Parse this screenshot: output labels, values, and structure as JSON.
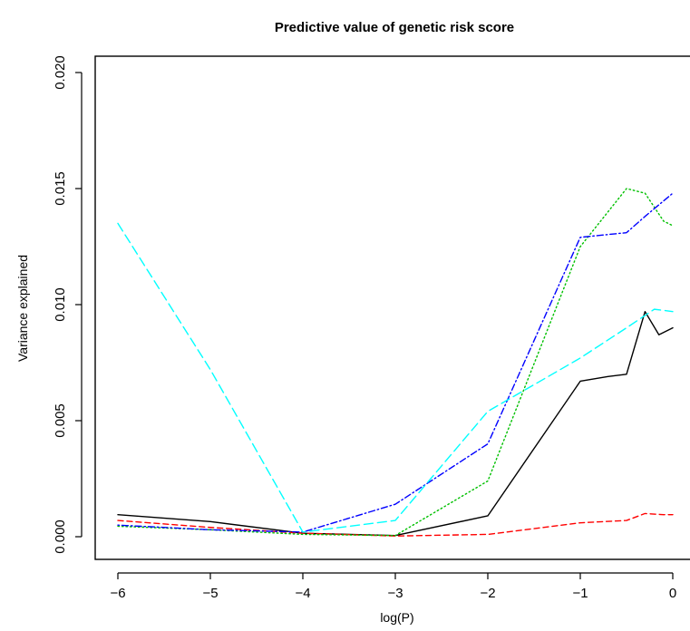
{
  "chart_data": {
    "type": "line",
    "title": "Predictive value of genetic risk score",
    "xlabel": "log(P)",
    "ylabel": "Variance explained",
    "xlim": [
      -6,
      0
    ],
    "ylim": [
      0,
      0.02
    ],
    "x_ticks": [
      -6,
      -5,
      -4,
      -3,
      -2,
      -1,
      0
    ],
    "x_tick_labels": [
      "−6",
      "−5",
      "−4",
      "−3",
      "−2",
      "−1",
      "0"
    ],
    "y_ticks": [
      0,
      0.005,
      0.01,
      0.015,
      0.02
    ],
    "y_tick_labels": [
      "0.000",
      "0.005",
      "0.010",
      "0.015",
      "0.020"
    ],
    "grid": false,
    "legend": "none",
    "series": [
      {
        "color": "#000000",
        "style": "solid",
        "x": [
          -6,
          -5,
          -4,
          -3,
          -2,
          -1,
          -0.7,
          -0.5,
          -0.3,
          -0.15,
          0
        ],
        "y": [
          0.00095,
          0.00065,
          0.00015,
          5e-05,
          0.0009,
          0.0067,
          0.0069,
          0.007,
          0.0097,
          0.0087,
          0.009
        ]
      },
      {
        "color": "#ff0000",
        "style": "dashed",
        "x": [
          -6,
          -5,
          -4,
          -3,
          -2,
          -1,
          -0.5,
          -0.3,
          -0.1,
          0
        ],
        "y": [
          0.0007,
          0.0004,
          0.00015,
          3e-05,
          0.0001,
          0.0006,
          0.0007,
          0.001,
          0.00095,
          0.00095
        ]
      },
      {
        "color": "#00c000",
        "style": "dotted",
        "x": [
          -6,
          -5,
          -4,
          -3,
          -2,
          -1,
          -0.5,
          -0.3,
          -0.1,
          0
        ],
        "y": [
          0.00045,
          0.0003,
          0.0001,
          5e-05,
          0.0024,
          0.0125,
          0.015,
          0.0148,
          0.0136,
          0.0134
        ]
      },
      {
        "color": "#0000ff",
        "style": "dotdash",
        "x": [
          -6,
          -5,
          -4,
          -3,
          -2,
          -1,
          -0.5,
          -0.3,
          0
        ],
        "y": [
          0.0005,
          0.0003,
          0.0002,
          0.0014,
          0.004,
          0.0129,
          0.0131,
          0.0138,
          0.0148
        ]
      },
      {
        "color": "#00ffff",
        "style": "longdash",
        "x": [
          -6,
          -5,
          -4,
          -3,
          -2,
          -1,
          -0.5,
          -0.2,
          0
        ],
        "y": [
          0.0135,
          0.0072,
          0.0002,
          0.0007,
          0.0054,
          0.0077,
          0.009,
          0.0098,
          0.0097
        ]
      }
    ]
  }
}
